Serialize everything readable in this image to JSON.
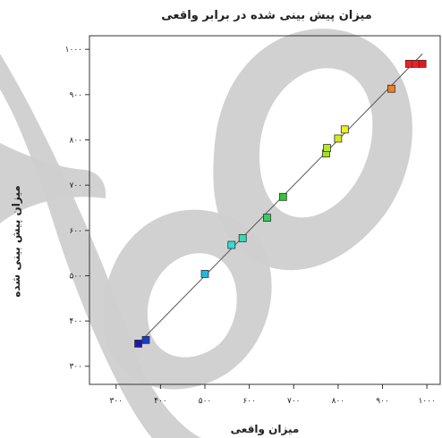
{
  "chart_data": {
    "type": "scatter",
    "title": "میزان پیش بینی شده در برابر واقعی",
    "xlabel": "میزان واقعی",
    "ylabel": "میزان پیش بینی شده",
    "xlim": [
      240,
      1030
    ],
    "ylim": [
      260,
      1030
    ],
    "xticks": [
      300,
      400,
      500,
      600,
      700,
      800,
      900,
      1000
    ],
    "xtick_labels": [
      "۳۰۰",
      "۴۰۰",
      "۵۰۰",
      "۶۰۰",
      "۷۰۰",
      "۸۰۰",
      "۹۰۰",
      "۱۰۰۰"
    ],
    "yticks": [
      300,
      400,
      500,
      600,
      700,
      800,
      900,
      1000
    ],
    "ytick_labels": [
      "۳۰۰",
      "۴۰۰",
      "۵۰۰",
      "۶۰۰",
      "۷۰۰",
      "۸۰۰",
      "۹۰۰",
      "۱۰۰۰"
    ],
    "grid": false,
    "reference_line": [
      [
        350,
        350
      ],
      [
        990,
        990
      ]
    ],
    "points": [
      {
        "x": 350,
        "y": 350,
        "color": "#1a1ab0"
      },
      {
        "x": 367,
        "y": 358,
        "color": "#1a3ad0"
      },
      {
        "x": 500,
        "y": 504,
        "color": "#22b8e0"
      },
      {
        "x": 560,
        "y": 568,
        "color": "#2ee0d8"
      },
      {
        "x": 585,
        "y": 583,
        "color": "#2ee0b0"
      },
      {
        "x": 640,
        "y": 628,
        "color": "#30d060"
      },
      {
        "x": 676,
        "y": 674,
        "color": "#30c830"
      },
      {
        "x": 773,
        "y": 770,
        "color": "#a0e020"
      },
      {
        "x": 775,
        "y": 782,
        "color": "#b8e828"
      },
      {
        "x": 800,
        "y": 803,
        "color": "#d8e818"
      },
      {
        "x": 815,
        "y": 823,
        "color": "#f0f020"
      },
      {
        "x": 920,
        "y": 913,
        "color": "#f08020"
      },
      {
        "x": 960,
        "y": 968,
        "color": "#f02020"
      },
      {
        "x": 975,
        "y": 968,
        "color": "#f02020"
      },
      {
        "x": 990,
        "y": 968,
        "color": "#e81818"
      }
    ]
  }
}
